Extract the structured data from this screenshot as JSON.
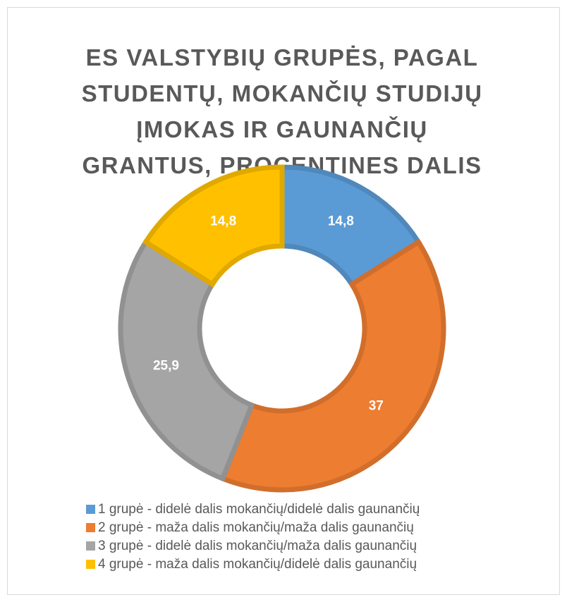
{
  "chart_data": {
    "type": "donut",
    "title": "ES VALSTYBIŲ GRUPĖS, PAGAL STUDENTŲ, MOKANČIŲ STUDIJŲ ĮMOKAS IR GAUNANČIŲ GRANTUS, PROCENTINES DALIS",
    "categories": [
      "1 grupė - didelė dalis mokančių/didelė dalis gaunančių",
      "2 grupė - maža dalis mokančių/maža dalis gaunančių",
      "3 grupė - didelė dalis mokančių/maža dalis gaunančių",
      "4 grupė - maža dalis mokančių/didelė dalis gaunančių"
    ],
    "values": [
      14.8,
      37,
      25.9,
      14.8
    ],
    "value_labels": [
      "14,8",
      "37",
      "25,9",
      "14,8"
    ],
    "colors": [
      "#5B9BD5",
      "#ED7D31",
      "#A5A5A5",
      "#FFC000"
    ],
    "legend": "bottom"
  }
}
